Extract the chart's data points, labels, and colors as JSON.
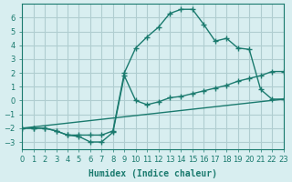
{
  "xlabel": "Humidex (Indice chaleur)",
  "ylabel": "",
  "bg_color": "#d8eef0",
  "grid_color": "#b0cdd0",
  "line_color": "#1a7a6e",
  "xlim": [
    0,
    23
  ],
  "ylim": [
    -3.5,
    7
  ],
  "xticks": [
    0,
    1,
    2,
    3,
    4,
    5,
    6,
    7,
    8,
    9,
    10,
    11,
    12,
    13,
    14,
    15,
    16,
    17,
    18,
    19,
    20,
    21,
    22,
    23
  ],
  "yticks": [
    -3,
    -2,
    -1,
    0,
    1,
    2,
    3,
    4,
    5,
    6
  ],
  "curve1_x": [
    0,
    1,
    2,
    3,
    4,
    5,
    6,
    7,
    8,
    9,
    10,
    11,
    12,
    13,
    14,
    15,
    16,
    17,
    18,
    19,
    20,
    21,
    22,
    23
  ],
  "curve1_y": [
    -2.0,
    -2.0,
    -2.0,
    -2.2,
    -2.5,
    -2.5,
    -2.5,
    -2.5,
    -2.2,
    2.0,
    3.8,
    4.6,
    5.3,
    6.3,
    6.6,
    6.6,
    5.5,
    4.3,
    4.5,
    3.8,
    3.7,
    0.8,
    0.1,
    0.1
  ],
  "curve2_x": [
    0,
    1,
    2,
    3,
    4,
    5,
    6,
    7,
    8,
    9,
    10,
    11,
    12,
    13,
    14,
    15,
    16,
    17,
    18,
    19,
    20,
    21,
    22,
    23
  ],
  "curve2_y": [
    -2.0,
    -2.0,
    -2.0,
    -2.2,
    -2.5,
    -2.6,
    -3.0,
    -3.0,
    -2.3,
    1.8,
    0.0,
    -0.3,
    -0.1,
    0.2,
    0.3,
    0.5,
    0.7,
    0.9,
    1.1,
    1.4,
    1.6,
    1.8,
    2.1,
    2.1
  ],
  "curve3_x": [
    0,
    23
  ],
  "curve3_y": [
    -2.0,
    0.1
  ]
}
